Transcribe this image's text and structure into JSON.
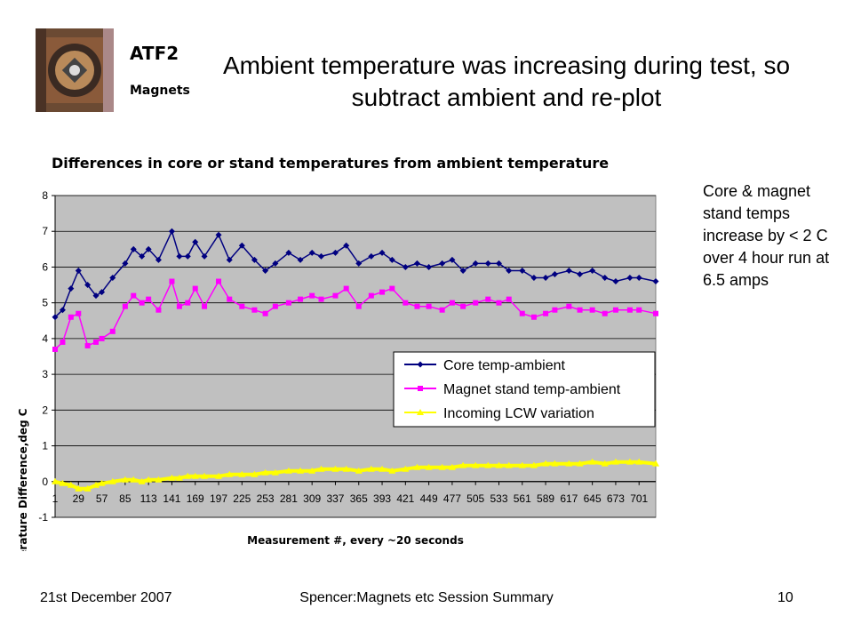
{
  "slide": {
    "brand_line1": "ATF2",
    "brand_line2": "Magnets",
    "title": "Ambient temperature was increasing during test, so subtract ambient and re-plot",
    "note": "Core & magnet stand temps increase by < 2 C over 4 hour run at 6.5 amps",
    "footer_left": "21st December 2007",
    "footer_center": "Spencer:Magnets etc Session Summary",
    "footer_right": "10"
  },
  "chart_data": {
    "type": "line",
    "title": "Differences in core or stand temperatures from ambient temperature",
    "xlabel": "Measurement #, every ~20 seconds",
    "ylabel": "Temperature Difference,deg C",
    "xlim": [
      1,
      721
    ],
    "ylim": [
      -1,
      8
    ],
    "yticks": [
      -1,
      0,
      1,
      2,
      3,
      4,
      5,
      6,
      7,
      8
    ],
    "xticks": [
      1,
      29,
      57,
      85,
      113,
      141,
      169,
      197,
      225,
      253,
      281,
      309,
      337,
      365,
      393,
      421,
      449,
      477,
      505,
      533,
      561,
      589,
      617,
      645,
      673,
      701
    ],
    "grid": true,
    "plot_background": "#c0c0c0",
    "legend_position": "lower-right",
    "series": [
      {
        "name": "Core temp-ambient",
        "color": "#000080",
        "marker": "diamond",
        "x": [
          1,
          10,
          20,
          29,
          40,
          50,
          57,
          70,
          85,
          95,
          105,
          113,
          125,
          141,
          150,
          160,
          169,
          180,
          197,
          210,
          225,
          240,
          253,
          265,
          281,
          295,
          309,
          320,
          337,
          350,
          365,
          380,
          393,
          405,
          421,
          435,
          449,
          465,
          477,
          490,
          505,
          520,
          533,
          545,
          561,
          575,
          589,
          600,
          617,
          630,
          645,
          660,
          673,
          690,
          701,
          721
        ],
        "values": [
          4.6,
          4.8,
          5.4,
          5.9,
          5.5,
          5.2,
          5.3,
          5.7,
          6.1,
          6.5,
          6.3,
          6.5,
          6.2,
          7.0,
          6.3,
          6.3,
          6.7,
          6.3,
          6.9,
          6.2,
          6.6,
          6.2,
          5.9,
          6.1,
          6.4,
          6.2,
          6.4,
          6.3,
          6.4,
          6.6,
          6.1,
          6.3,
          6.4,
          6.2,
          6.0,
          6.1,
          6.0,
          6.1,
          6.2,
          5.9,
          6.1,
          6.1,
          6.1,
          5.9,
          5.9,
          5.7,
          5.7,
          5.8,
          5.9,
          5.8,
          5.9,
          5.7,
          5.6,
          5.7,
          5.7,
          5.6
        ]
      },
      {
        "name": "Magnet stand temp-ambient",
        "color": "#ff00ff",
        "marker": "square",
        "x": [
          1,
          10,
          20,
          29,
          40,
          50,
          57,
          70,
          85,
          95,
          105,
          113,
          125,
          141,
          150,
          160,
          169,
          180,
          197,
          210,
          225,
          240,
          253,
          265,
          281,
          295,
          309,
          320,
          337,
          350,
          365,
          380,
          393,
          405,
          421,
          435,
          449,
          465,
          477,
          490,
          505,
          520,
          533,
          545,
          561,
          575,
          589,
          600,
          617,
          630,
          645,
          660,
          673,
          690,
          701,
          721
        ],
        "values": [
          3.7,
          3.9,
          4.6,
          4.7,
          3.8,
          3.9,
          4.0,
          4.2,
          4.9,
          5.2,
          5.0,
          5.1,
          4.8,
          5.6,
          4.9,
          5.0,
          5.4,
          4.9,
          5.6,
          5.1,
          4.9,
          4.8,
          4.7,
          4.9,
          5.0,
          5.1,
          5.2,
          5.1,
          5.2,
          5.4,
          4.9,
          5.2,
          5.3,
          5.4,
          5.0,
          4.9,
          4.9,
          4.8,
          5.0,
          4.9,
          5.0,
          5.1,
          5.0,
          5.1,
          4.7,
          4.6,
          4.7,
          4.8,
          4.9,
          4.8,
          4.8,
          4.7,
          4.8,
          4.8,
          4.8,
          4.7
        ]
      },
      {
        "name": "Incoming LCW variation",
        "color": "#ffff00",
        "marker": "triangle",
        "x": [
          1,
          10,
          20,
          29,
          40,
          50,
          57,
          70,
          85,
          95,
          105,
          113,
          125,
          141,
          150,
          160,
          169,
          180,
          197,
          210,
          225,
          240,
          253,
          265,
          281,
          295,
          309,
          320,
          337,
          350,
          365,
          380,
          393,
          405,
          421,
          435,
          449,
          465,
          477,
          490,
          505,
          520,
          533,
          545,
          561,
          575,
          589,
          600,
          617,
          630,
          645,
          660,
          673,
          690,
          701,
          721
        ],
        "values": [
          0.0,
          -0.05,
          -0.1,
          -0.2,
          -0.2,
          -0.1,
          -0.05,
          0.0,
          0.05,
          0.05,
          0.0,
          0.05,
          0.05,
          0.1,
          0.1,
          0.15,
          0.15,
          0.15,
          0.15,
          0.2,
          0.2,
          0.2,
          0.25,
          0.25,
          0.3,
          0.3,
          0.3,
          0.35,
          0.35,
          0.35,
          0.3,
          0.35,
          0.35,
          0.3,
          0.35,
          0.4,
          0.4,
          0.4,
          0.4,
          0.45,
          0.45,
          0.45,
          0.45,
          0.45,
          0.45,
          0.45,
          0.5,
          0.5,
          0.5,
          0.5,
          0.55,
          0.5,
          0.55,
          0.55,
          0.55,
          0.5
        ]
      }
    ]
  }
}
